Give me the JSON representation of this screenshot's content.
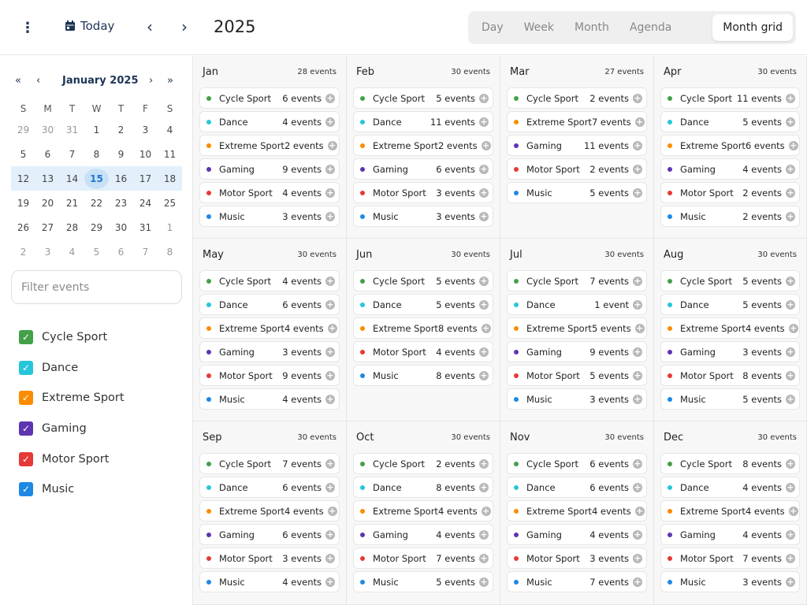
{
  "header": {
    "today_label": "Today",
    "year": "2025",
    "views": [
      "Day",
      "Week",
      "Month",
      "Agenda",
      "Month grid"
    ],
    "active_view": "Month grid"
  },
  "mini_calendar": {
    "title": "January 2025",
    "weekdays": [
      "S",
      "M",
      "T",
      "W",
      "T",
      "F",
      "S"
    ],
    "weeks": [
      [
        "29",
        "30",
        "31",
        "1",
        "2",
        "3",
        "4"
      ],
      [
        "5",
        "6",
        "7",
        "8",
        "9",
        "10",
        "11"
      ],
      [
        "12",
        "13",
        "14",
        "15",
        "16",
        "17",
        "18"
      ],
      [
        "19",
        "20",
        "21",
        "22",
        "23",
        "24",
        "25"
      ],
      [
        "26",
        "27",
        "28",
        "29",
        "30",
        "31",
        "1"
      ],
      [
        "2",
        "3",
        "4",
        "5",
        "6",
        "7",
        "8"
      ]
    ],
    "selected_day": "15"
  },
  "filter": {
    "placeholder": "Filter events"
  },
  "categories": [
    {
      "label": "Cycle Sport",
      "color": "#43a047"
    },
    {
      "label": "Dance",
      "color": "#26c6da"
    },
    {
      "label": "Extreme Sport",
      "color": "#fb8c00"
    },
    {
      "label": "Gaming",
      "color": "#5e35b1"
    },
    {
      "label": "Motor Sport",
      "color": "#e53935"
    },
    {
      "label": "Music",
      "color": "#1e88e5"
    }
  ],
  "months": [
    {
      "name": "Jan",
      "total": "28 events",
      "items": [
        [
          "Cycle Sport",
          "6 events"
        ],
        [
          "Dance",
          "4 events"
        ],
        [
          "Extreme Sport",
          "2 events"
        ],
        [
          "Gaming",
          "9 events"
        ],
        [
          "Motor Sport",
          "4 events"
        ],
        [
          "Music",
          "3 events"
        ]
      ]
    },
    {
      "name": "Feb",
      "total": "30 events",
      "items": [
        [
          "Cycle Sport",
          "5 events"
        ],
        [
          "Dance",
          "11 events"
        ],
        [
          "Extreme Sport",
          "2 events"
        ],
        [
          "Gaming",
          "6 events"
        ],
        [
          "Motor Sport",
          "3 events"
        ],
        [
          "Music",
          "3 events"
        ]
      ]
    },
    {
      "name": "Mar",
      "total": "27 events",
      "items": [
        [
          "Cycle Sport",
          "2 events"
        ],
        [
          "Extreme Sport",
          "7 events"
        ],
        [
          "Gaming",
          "11 events"
        ],
        [
          "Motor Sport",
          "2 events"
        ],
        [
          "Music",
          "5 events"
        ]
      ]
    },
    {
      "name": "Apr",
      "total": "30 events",
      "items": [
        [
          "Cycle Sport",
          "11 events"
        ],
        [
          "Dance",
          "5 events"
        ],
        [
          "Extreme Sport",
          "6 events"
        ],
        [
          "Gaming",
          "4 events"
        ],
        [
          "Motor Sport",
          "2 events"
        ],
        [
          "Music",
          "2 events"
        ]
      ]
    },
    {
      "name": "May",
      "total": "30 events",
      "items": [
        [
          "Cycle Sport",
          "4 events"
        ],
        [
          "Dance",
          "6 events"
        ],
        [
          "Extreme Sport",
          "4 events"
        ],
        [
          "Gaming",
          "3 events"
        ],
        [
          "Motor Sport",
          "9 events"
        ],
        [
          "Music",
          "4 events"
        ]
      ]
    },
    {
      "name": "Jun",
      "total": "30 events",
      "items": [
        [
          "Cycle Sport",
          "5 events"
        ],
        [
          "Dance",
          "5 events"
        ],
        [
          "Extreme Sport",
          "8 events"
        ],
        [
          "Motor Sport",
          "4 events"
        ],
        [
          "Music",
          "8 events"
        ]
      ]
    },
    {
      "name": "Jul",
      "total": "30 events",
      "items": [
        [
          "Cycle Sport",
          "7 events"
        ],
        [
          "Dance",
          "1 event"
        ],
        [
          "Extreme Sport",
          "5 events"
        ],
        [
          "Gaming",
          "9 events"
        ],
        [
          "Motor Sport",
          "5 events"
        ],
        [
          "Music",
          "3 events"
        ]
      ]
    },
    {
      "name": "Aug",
      "total": "30 events",
      "items": [
        [
          "Cycle Sport",
          "5 events"
        ],
        [
          "Dance",
          "5 events"
        ],
        [
          "Extreme Sport",
          "4 events"
        ],
        [
          "Gaming",
          "3 events"
        ],
        [
          "Motor Sport",
          "8 events"
        ],
        [
          "Music",
          "5 events"
        ]
      ]
    },
    {
      "name": "Sep",
      "total": "30 events",
      "items": [
        [
          "Cycle Sport",
          "7 events"
        ],
        [
          "Dance",
          "6 events"
        ],
        [
          "Extreme Sport",
          "4 events"
        ],
        [
          "Gaming",
          "6 events"
        ],
        [
          "Motor Sport",
          "3 events"
        ],
        [
          "Music",
          "4 events"
        ]
      ]
    },
    {
      "name": "Oct",
      "total": "30 events",
      "items": [
        [
          "Cycle Sport",
          "2 events"
        ],
        [
          "Dance",
          "8 events"
        ],
        [
          "Extreme Sport",
          "4 events"
        ],
        [
          "Gaming",
          "4 events"
        ],
        [
          "Motor Sport",
          "7 events"
        ],
        [
          "Music",
          "5 events"
        ]
      ]
    },
    {
      "name": "Nov",
      "total": "30 events",
      "items": [
        [
          "Cycle Sport",
          "6 events"
        ],
        [
          "Dance",
          "6 events"
        ],
        [
          "Extreme Sport",
          "4 events"
        ],
        [
          "Gaming",
          "4 events"
        ],
        [
          "Motor Sport",
          "3 events"
        ],
        [
          "Music",
          "7 events"
        ]
      ]
    },
    {
      "name": "Dec",
      "total": "30 events",
      "items": [
        [
          "Cycle Sport",
          "8 events"
        ],
        [
          "Dance",
          "4 events"
        ],
        [
          "Extreme Sport",
          "4 events"
        ],
        [
          "Gaming",
          "4 events"
        ],
        [
          "Motor Sport",
          "7 events"
        ],
        [
          "Music",
          "3 events"
        ]
      ]
    }
  ]
}
